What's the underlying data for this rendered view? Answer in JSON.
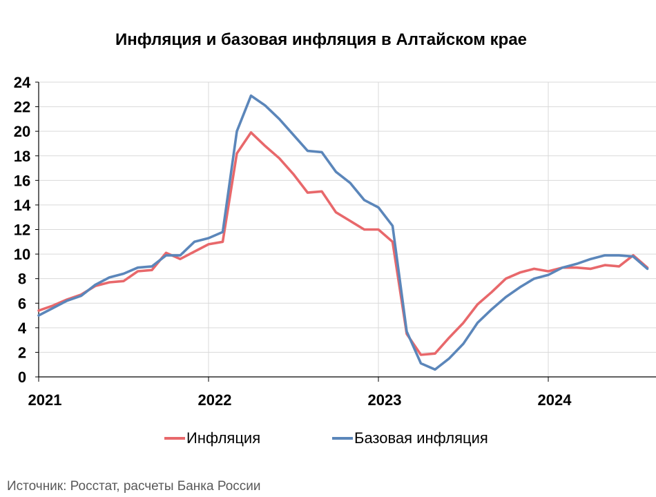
{
  "chart_data": {
    "type": "line",
    "title": "Инфляция и базовая инфляция в Алтайском крае",
    "x_start": "2021-01",
    "x_tick_labels": [
      "2021",
      "2022",
      "2023",
      "2024"
    ],
    "ylim": [
      0,
      24
    ],
    "y_ticks": [
      0,
      2,
      4,
      6,
      8,
      10,
      12,
      14,
      16,
      18,
      20,
      22,
      24
    ],
    "grid": true,
    "legend_position": "bottom",
    "series": [
      {
        "name": "Инфляция",
        "color": "#E8686B",
        "values": [
          5.4,
          5.8,
          6.3,
          6.7,
          7.4,
          7.7,
          7.8,
          8.6,
          8.7,
          10.1,
          9.6,
          10.2,
          10.8,
          11.0,
          18.2,
          19.9,
          18.8,
          17.8,
          16.5,
          15.0,
          15.1,
          13.4,
          12.7,
          12.0,
          12.0,
          11.0,
          3.5,
          1.8,
          1.9,
          3.2,
          4.4,
          5.9,
          6.9,
          8.0,
          8.5,
          8.8,
          8.6,
          8.9,
          8.9,
          8.8,
          9.1,
          9.0,
          9.9,
          8.9
        ]
      },
      {
        "name": "Базовая инфляция",
        "color": "#5B86BA",
        "values": [
          5.0,
          5.6,
          6.2,
          6.6,
          7.5,
          8.1,
          8.4,
          8.9,
          9.0,
          9.9,
          9.9,
          11.0,
          11.3,
          11.8,
          20.0,
          22.9,
          22.1,
          21.0,
          19.7,
          18.4,
          18.3,
          16.7,
          15.8,
          14.4,
          13.8,
          12.3,
          3.7,
          1.1,
          0.6,
          1.5,
          2.7,
          4.4,
          5.5,
          6.5,
          7.3,
          8.0,
          8.3,
          8.9,
          9.2,
          9.6,
          9.9,
          9.9,
          9.8,
          8.8
        ]
      }
    ]
  },
  "legend": {
    "inflation_label": "Инфляция",
    "core_label": "Базовая инфляция"
  },
  "source": "Источник: Росстат, расчеты Банка России"
}
